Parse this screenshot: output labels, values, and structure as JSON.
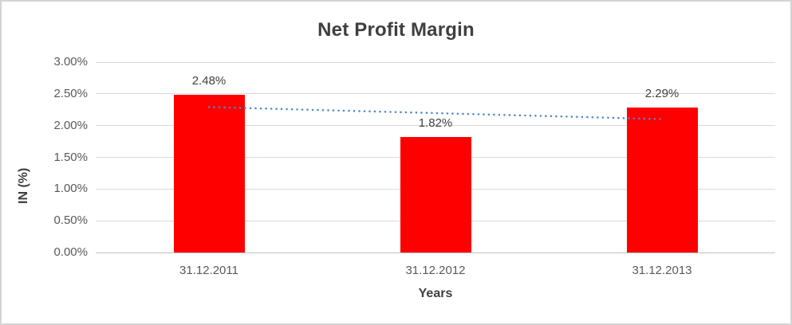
{
  "chart_data": {
    "type": "bar",
    "title": "Net Profit Margin",
    "xlabel": "Years",
    "ylabel": "IN (%)",
    "categories": [
      "31.12.2011",
      "31.12.2012",
      "31.12.2013"
    ],
    "series": [
      {
        "name": "Net Profit Margin",
        "values": [
          2.48,
          1.82,
          2.29
        ]
      }
    ],
    "data_labels": [
      "2.48%",
      "1.82%",
      "2.29%"
    ],
    "y_ticks": [
      {
        "label": "0.00%",
        "value": 0.0
      },
      {
        "label": "0.50%",
        "value": 0.5
      },
      {
        "label": "1.00%",
        "value": 1.0
      },
      {
        "label": "1.50%",
        "value": 1.5
      },
      {
        "label": "2.00%",
        "value": 2.0
      },
      {
        "label": "2.50%",
        "value": 2.5
      },
      {
        "label": "3.00%",
        "value": 3.0
      }
    ],
    "ylim": [
      0,
      3.0
    ],
    "grid": true,
    "legend": false,
    "trendline": {
      "type": "linear",
      "style": "dotted",
      "start_value": 2.2917,
      "end_value": 2.1017
    },
    "colors": {
      "bar": "#fe0000",
      "trendline": "#5488c7",
      "gridline": "#d9d9d9",
      "axis_line": "#bfbfbf",
      "title_text": "#3f3f3f",
      "tick_text": "#595959",
      "label_text": "#404040"
    }
  }
}
